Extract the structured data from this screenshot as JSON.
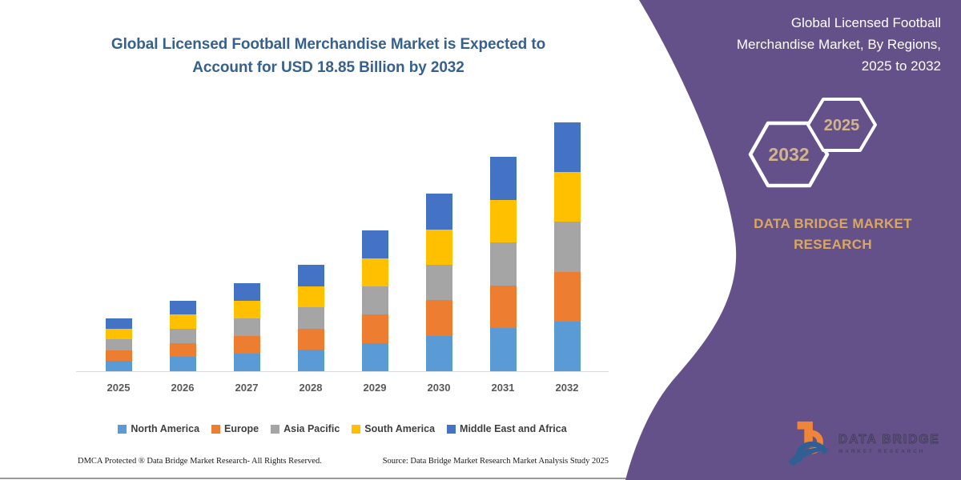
{
  "page": {
    "background": "#ffffff",
    "accent_purple": "#655189",
    "gold": "#D9A85F",
    "title_blue": "#36618E"
  },
  "left": {
    "title": "Global Licensed Football Merchandise Market is Expected to Account for USD 18.85 Billion by 2032",
    "footer_left": "DMCA Protected ® Data Bridge Market Research-  All Rights Reserved.",
    "footer_right": "Source: Data Bridge Market Research  Market Analysis Study 2025"
  },
  "right": {
    "title": "Global Licensed Football Merchandise Market, By Regions, 2025 to 2032",
    "hexagons": [
      {
        "label": "2032"
      },
      {
        "label": "2025"
      }
    ],
    "brand": "DATA BRIDGE MARKET RESEARCH",
    "logo": {
      "icon": "data-bridge-b-swoosh-icon",
      "line1": "DATA BRIDGE",
      "line2": "MARKET RESEARCH"
    }
  },
  "chart_data": {
    "type": "bar",
    "stacked": true,
    "title": "Global Licensed Football Merchandise Market is Expected to Account for USD 18.85 Billion by 2032",
    "unit": "USD Billion",
    "categories": [
      "2025",
      "2026",
      "2027",
      "2028",
      "2029",
      "2030",
      "2031",
      "2032"
    ],
    "series": [
      {
        "name": "North America",
        "color": "#5B9BD5",
        "values": [
          0.8,
          1.07,
          1.34,
          1.61,
          2.14,
          2.69,
          3.25,
          3.77
        ]
      },
      {
        "name": "Europe",
        "color": "#ED7D31",
        "values": [
          0.8,
          1.07,
          1.34,
          1.61,
          2.14,
          2.69,
          3.25,
          3.77
        ]
      },
      {
        "name": "Asia Pacific",
        "color": "#A5A5A5",
        "values": [
          0.8,
          1.07,
          1.34,
          1.61,
          2.14,
          2.69,
          3.25,
          3.77
        ]
      },
      {
        "name": "South America",
        "color": "#FFC000",
        "values": [
          0.8,
          1.07,
          1.34,
          1.61,
          2.14,
          2.69,
          3.25,
          3.77
        ]
      },
      {
        "name": "Middle East and Africa",
        "color": "#4472C4",
        "values": [
          0.8,
          1.07,
          1.34,
          1.61,
          2.14,
          2.69,
          3.25,
          3.77
        ]
      }
    ],
    "totals": [
      4.0,
      5.35,
      6.7,
      8.05,
      10.7,
      13.45,
      16.25,
      18.85
    ],
    "ylim": [
      0,
      20
    ],
    "grid": false,
    "axis_line_color": "#D9D9D9",
    "legend_position": "bottom",
    "xlabel": "",
    "ylabel": ""
  }
}
